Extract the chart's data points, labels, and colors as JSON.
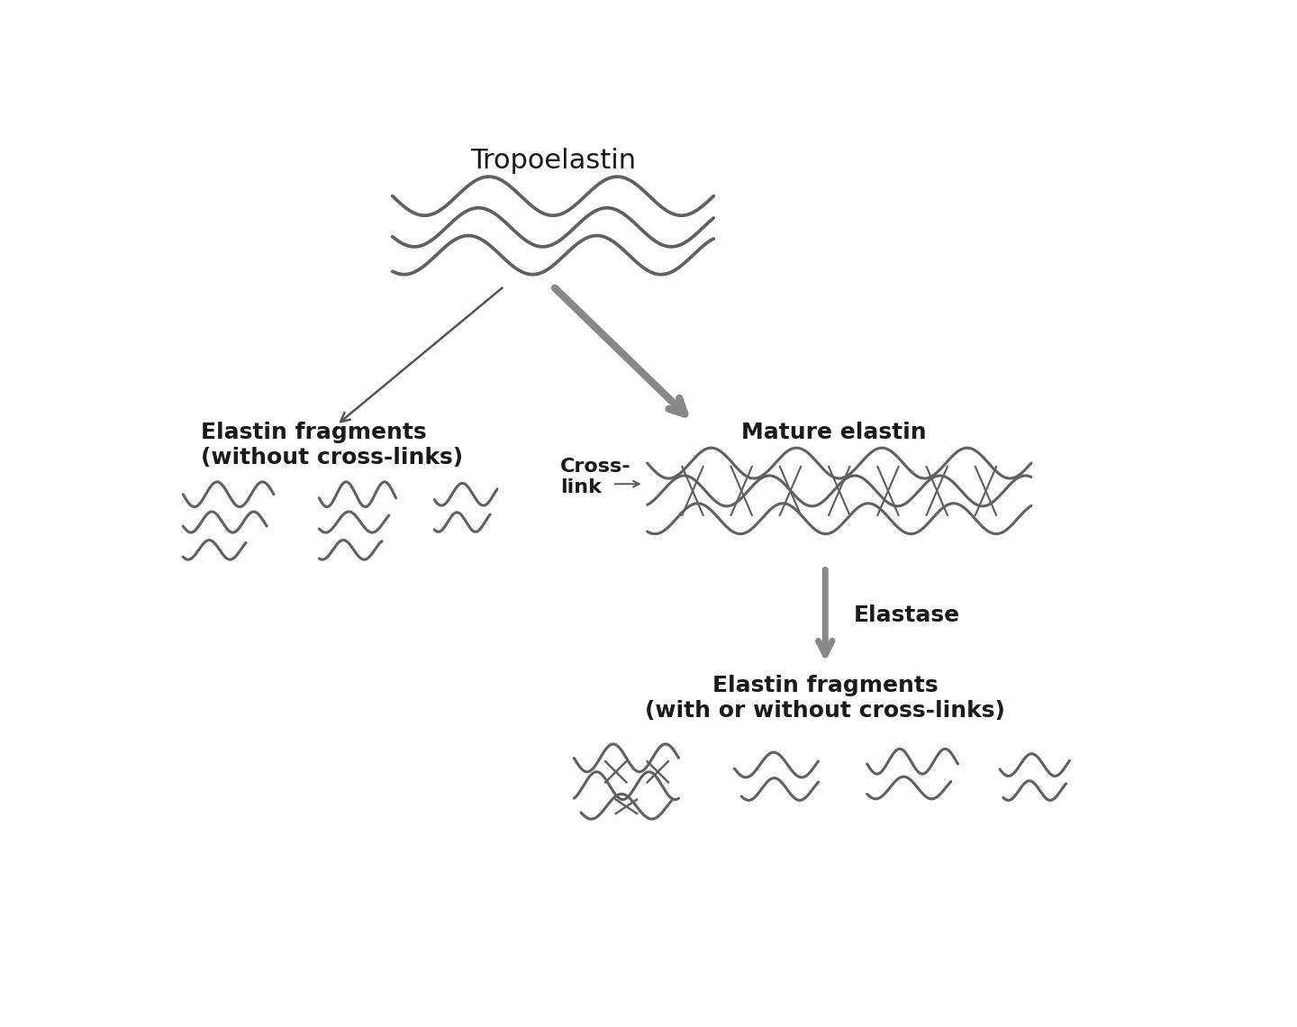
{
  "title": "Tropoelastin",
  "label_mature": "Mature elastin",
  "label_elastin_frag_left": "Elastin fragments\n(without cross-links)",
  "label_crosslink": "Cross-\nlink",
  "label_elastase": "Elastase",
  "label_elastin_frag_bottom": "Elastin fragments\n(with or without cross-links)",
  "bg_color": "#ffffff",
  "line_color": "#606060",
  "text_color": "#1a1a1a",
  "arrow_color": "#888888",
  "arrow_thin_color": "#555555",
  "font_size": 18,
  "lw": 2.2
}
